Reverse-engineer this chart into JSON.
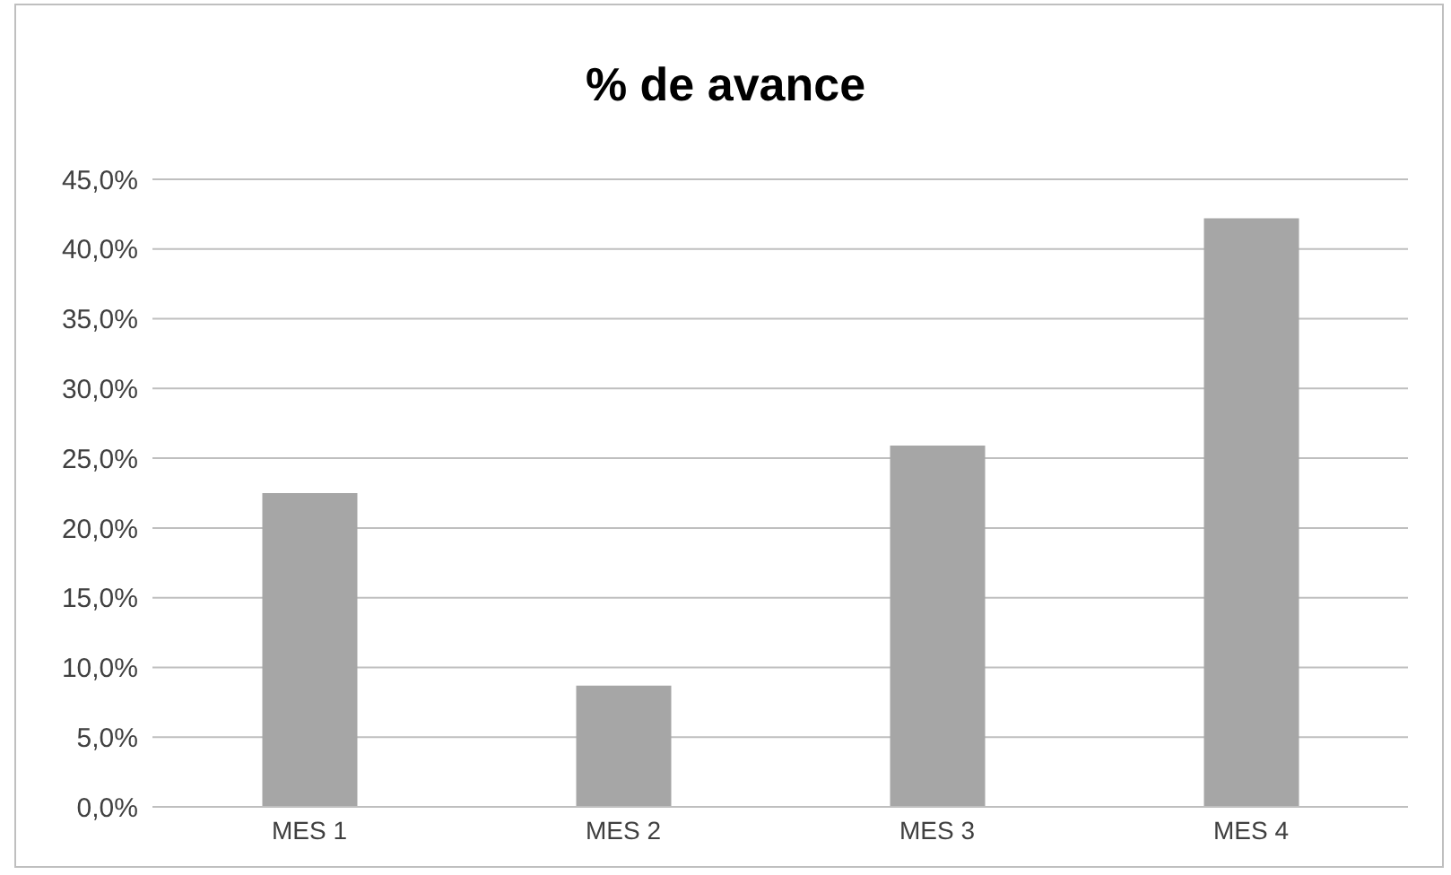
{
  "chart_data": {
    "type": "bar",
    "title": "% de avance",
    "categories": [
      "MES 1",
      "MES 2",
      "MES 3",
      "MES 4"
    ],
    "values": [
      22.5,
      8.7,
      25.9,
      42.2
    ],
    "color": "#a6a6a6",
    "ylim": [
      0,
      45
    ],
    "yticks": [
      {
        "value": 0,
        "label": "0,0%"
      },
      {
        "value": 5,
        "label": "5,0%"
      },
      {
        "value": 10,
        "label": "10,0%"
      },
      {
        "value": 15,
        "label": "15,0%"
      },
      {
        "value": 20,
        "label": "20,0%"
      },
      {
        "value": 25,
        "label": "25,0%"
      },
      {
        "value": 30,
        "label": "30,0%"
      },
      {
        "value": 35,
        "label": "35,0%"
      },
      {
        "value": 40,
        "label": "40,0%"
      },
      {
        "value": 45,
        "label": "45,0%"
      }
    ],
    "grid": "y",
    "legend": false
  }
}
